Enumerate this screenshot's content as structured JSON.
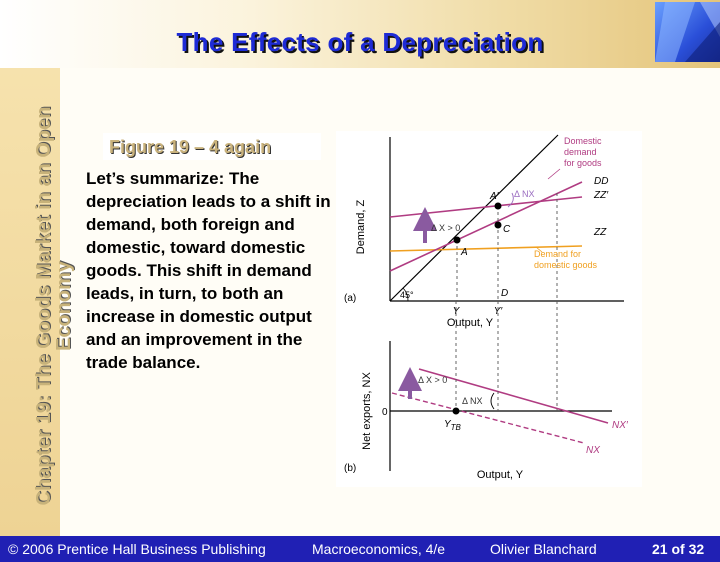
{
  "slide": {
    "title": "The Effects of a Depreciation",
    "chapter_title": "Chapter 19: The Goods Market in an Open Economy",
    "figure_label": "Figure 19 – 4 again",
    "body_text": "Let’s summarize: The depreciation leads to a shift in demand, both foreign and domestic, toward domestic goods. This shift in demand leads, in turn, to both an increase in domestic output and an improvement in the trade balance."
  },
  "figure": {
    "panel_a": {
      "panel_letter": "(a)",
      "y_axis_label": "Demand, Z",
      "x_axis_label": "Output, Y",
      "angle_label": "45°",
      "point_labels": {
        "A": "A",
        "A_prime": "A′",
        "C": "C",
        "D": "D"
      },
      "tick_labels": {
        "Y": "Y",
        "Y_prime": "Y′"
      },
      "line_labels": {
        "DD": "DD",
        "ZZ_prime": "ZZ′",
        "ZZ": "ZZ"
      },
      "annotations": {
        "delta_nx": "Δ NX",
        "delta_x": "Δ X > 0",
        "domestic_demand": [
          "Domestic",
          "demand",
          "for goods"
        ],
        "demand_domestic_goods": [
          "Demand for",
          "domestic goods"
        ]
      }
    },
    "panel_b": {
      "panel_letter": "(b)",
      "y_axis_label": "Net exports, NX",
      "x_axis_label": "Output, Y",
      "zero_label": "0",
      "tick_label_ytb": "Y",
      "tick_label_ytb_sub": "TB",
      "line_labels": {
        "NX_prime": "NX′",
        "NX": "NX"
      },
      "annotations": {
        "delta_x": "Δ X > 0",
        "delta_nx": "Δ NX"
      }
    },
    "colors": {
      "purple": "#b03c82",
      "violet": "#9a6cc0",
      "orange": "#f0a020",
      "arrow": "#8a5aa0"
    }
  },
  "footer": {
    "publisher": "© 2006 Prentice Hall Business Publishing",
    "book": "Macroeconomics, 4/e",
    "author": "Olivier Blanchard",
    "page_number": "21 of 32"
  }
}
